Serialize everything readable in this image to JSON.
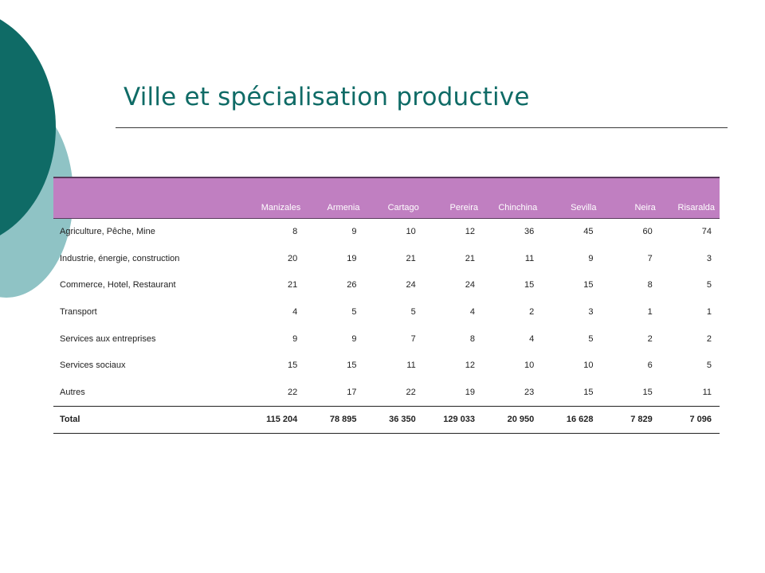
{
  "slide": {
    "title": "Ville et spécialisation productive",
    "colors": {
      "title": "#0f6b66",
      "circle_dark": "#0f6b66",
      "circle_light": "#8fc3c5",
      "table_header": "#c07fc1"
    }
  },
  "table": {
    "corner_label": "",
    "columns": [
      "Manizales",
      "Armenia",
      "Cartago",
      "Pereira",
      "Chinchina",
      "Sevilla",
      "Neira",
      "Risaralda"
    ],
    "rows": [
      {
        "label": "Agriculture, Pêche, Mine",
        "values": [
          "8",
          "9",
          "10",
          "12",
          "36",
          "45",
          "60",
          "74"
        ]
      },
      {
        "label": "Industrie, énergie, construction",
        "values": [
          "20",
          "19",
          "21",
          "21",
          "11",
          "9",
          "7",
          "3"
        ]
      },
      {
        "label": "Commerce, Hotel, Restaurant",
        "values": [
          "21",
          "26",
          "24",
          "24",
          "15",
          "15",
          "8",
          "5"
        ]
      },
      {
        "label": "Transport",
        "values": [
          "4",
          "5",
          "5",
          "4",
          "2",
          "3",
          "1",
          "1"
        ]
      },
      {
        "label": "Services aux entreprises",
        "values": [
          "9",
          "9",
          "7",
          "8",
          "4",
          "5",
          "2",
          "2"
        ]
      },
      {
        "label": "Services sociaux",
        "values": [
          "15",
          "15",
          "11",
          "12",
          "10",
          "10",
          "6",
          "5"
        ]
      },
      {
        "label": "Autres",
        "values": [
          "22",
          "17",
          "22",
          "19",
          "23",
          "15",
          "15",
          "11"
        ]
      }
    ],
    "total": {
      "label": "Total",
      "values": [
        "115 204",
        "78 895",
        "36 350",
        "129 033",
        "20 950",
        "16 628",
        "7 829",
        "7 096"
      ]
    }
  }
}
